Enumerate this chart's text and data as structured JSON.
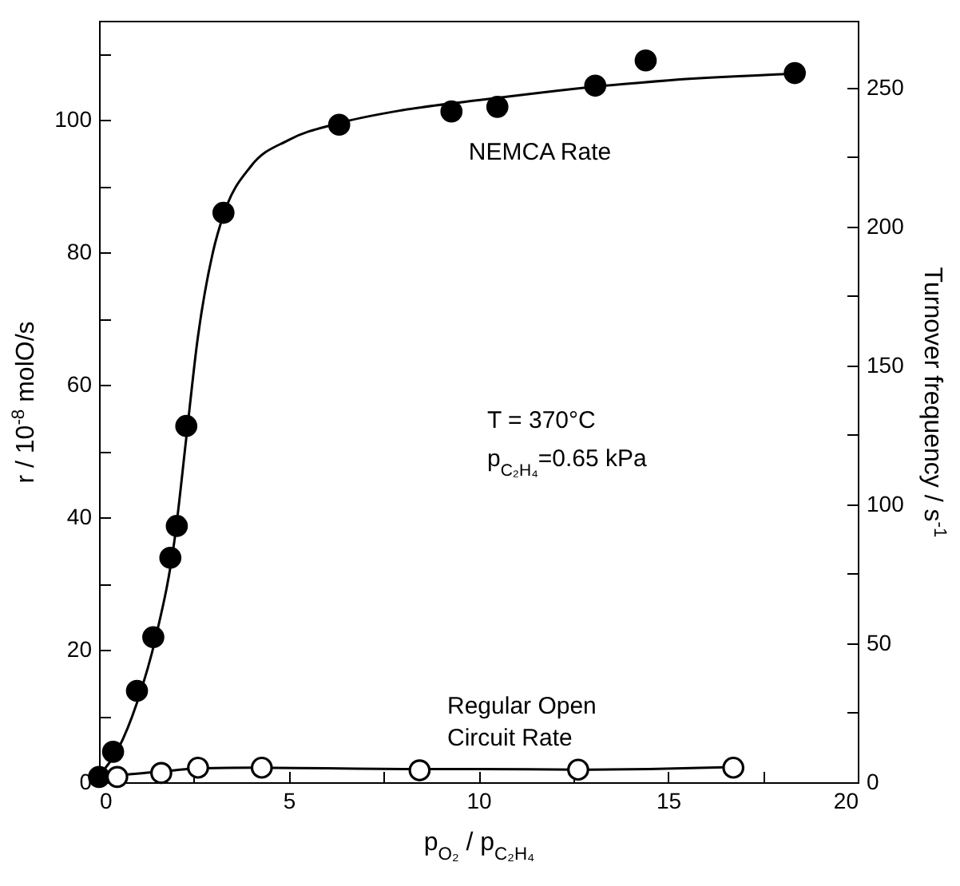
{
  "chart_data": {
    "type": "scatter",
    "xlabel": "p$_{O₂}$ / p$_{C₂H₄}$",
    "ylabel": "r / 10$^{-8}$ molO/s",
    "y2label": "Turnover frequency / s$^{-1}$",
    "annotations": [
      "T = 370°C",
      "p$_{C₂H₄}$=0.65 kPa"
    ],
    "xlim": [
      0,
      20
    ],
    "xticks": [
      0,
      {
        "value": 2.5,
        "label": null
      },
      5,
      {
        "value": 7.5,
        "label": null
      },
      10,
      {
        "value": 12.5,
        "label": null
      },
      15,
      {
        "value": 17.5,
        "label": null
      },
      20
    ],
    "ylim": [
      0,
      115
    ],
    "yticks": [
      0,
      {
        "value": 10,
        "label": null
      },
      20,
      {
        "value": 30,
        "label": null
      },
      40,
      {
        "value": 50,
        "label": null
      },
      60,
      {
        "value": 70,
        "label": null
      },
      80,
      {
        "value": 90,
        "label": null
      },
      100,
      {
        "value": 110,
        "label": null
      }
    ],
    "y2lim": [
      0,
      274
    ],
    "y2ticks": [
      0,
      {
        "value": 25,
        "label": null
      },
      50,
      {
        "value": 75,
        "label": null
      },
      100,
      {
        "value": 125,
        "label": null
      },
      150,
      {
        "value": 175,
        "label": null
      },
      200,
      {
        "value": 225,
        "label": null
      },
      250
    ],
    "grid": false,
    "series": [
      {
        "type": "line",
        "marker": "none",
        "color": "#000000",
        "x": [
          0,
          0.5,
          1,
          1.5,
          2,
          2.3,
          2.6,
          3,
          3.3,
          4,
          5,
          6.3,
          8,
          10,
          13,
          15,
          18.4
        ],
        "values": [
          1,
          5,
          12,
          22,
          37,
          52,
          67,
          80,
          86,
          93,
          97,
          99.5,
          101.5,
          103,
          105,
          106,
          107
        ]
      },
      {
        "type": "line",
        "marker": "none",
        "color": "#000000",
        "x": [
          0,
          0.5,
          1,
          2,
          2.6,
          4,
          6,
          8,
          10,
          12.6,
          14.5,
          16.7
        ],
        "values": [
          0.5,
          1,
          1.3,
          1.8,
          2.1,
          2.2,
          2.1,
          2,
          2,
          1.9,
          2,
          2.3
        ]
      },
      {
        "type": "scatter",
        "marker": "circle",
        "name": "NEMCA Rate",
        "color": "#000000",
        "x": [
          0,
          0.37,
          1.0,
          1.43,
          1.88,
          2.05,
          2.3,
          3.28,
          6.33,
          9.29,
          10.5,
          13.08,
          14.41,
          18.34
        ],
        "values": [
          0.8,
          4.6,
          13.8,
          21.9,
          33.9,
          38.7,
          53.8,
          86.0,
          99.3,
          101.3,
          102,
          105.2,
          109,
          107.1
        ]
      },
      {
        "type": "scatter",
        "marker": "circle",
        "name": "Regular Open Circuit Rate",
        "color": "#000000",
        "x": [
          0.48,
          1.64,
          2.61,
          4.29,
          8.45,
          12.63,
          16.72
        ],
        "values": [
          0.8,
          1.4,
          2.2,
          2.2,
          1.8,
          1.9,
          2.2
        ]
      }
    ]
  }
}
